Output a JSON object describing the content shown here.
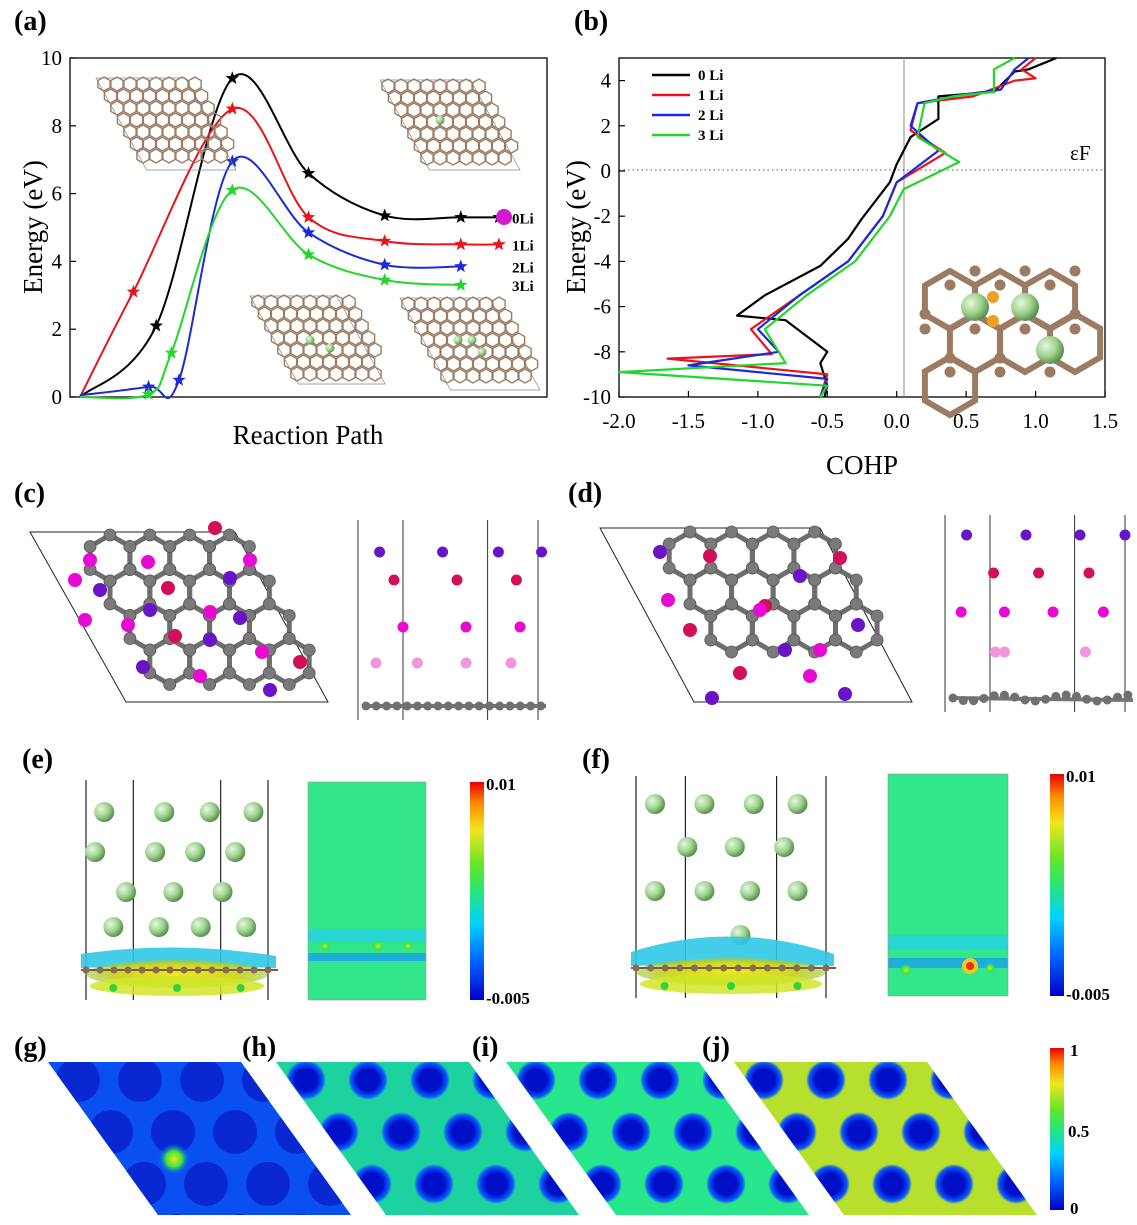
{
  "panel_labels": {
    "a": "(a)",
    "b": "(b)",
    "c": "(c)",
    "d": "(d)",
    "e": "(e)",
    "f": "(f)",
    "g": "(g)",
    "h": "(h)",
    "i": "(i)",
    "j": "(j)"
  },
  "colors": {
    "black": "#000000",
    "red": "#e8141c",
    "blue": "#1a2ad6",
    "green": "#22d62a",
    "carbon_brown": "#9b7b62",
    "lithium_green": "#9ed28e",
    "magenta": "#e60ad2",
    "crimson": "#d2105a",
    "purple": "#6a14c8"
  },
  "chart_data": [
    {
      "panel": "a",
      "type": "line",
      "xlabel": "Reaction Path",
      "ylabel": "Energy (eV)",
      "ylim": [
        0,
        10
      ],
      "yticks": [
        "0",
        "2",
        "4",
        "6",
        "8",
        "10"
      ],
      "x_ticks_shown": false,
      "marker": "star",
      "series": [
        {
          "name": "0Li",
          "color": "#000000",
          "x": [
            0,
            1.0,
            2.0,
            3.0,
            4.0,
            5.0,
            5.5
          ],
          "y": [
            0,
            2.1,
            9.4,
            6.6,
            5.35,
            5.3,
            5.3
          ]
        },
        {
          "name": "1Li",
          "color": "#e8141c",
          "x": [
            0,
            0.7,
            2.0,
            3.0,
            4.0,
            5.0,
            5.5
          ],
          "y": [
            0,
            3.1,
            8.5,
            5.3,
            4.6,
            4.5,
            4.5
          ]
        },
        {
          "name": "2Li",
          "color": "#1a2ad6",
          "x": [
            0,
            0.9,
            1.3,
            2.0,
            3.0,
            4.0,
            5.0
          ],
          "y": [
            0.05,
            0.3,
            0.5,
            6.95,
            4.85,
            3.9,
            3.85
          ]
        },
        {
          "name": "3Li",
          "color": "#22d62a",
          "x": [
            0,
            0.9,
            1.2,
            2.0,
            3.0,
            4.0,
            5.0
          ],
          "y": [
            0,
            0.08,
            1.3,
            6.1,
            4.2,
            3.45,
            3.3
          ]
        }
      ]
    },
    {
      "panel": "b",
      "type": "line",
      "xlabel": "COHP",
      "ylabel": "Energy (eV)",
      "xlim": [
        -2.0,
        1.5
      ],
      "ylim": [
        -10,
        5
      ],
      "xticks": [
        "-2.0",
        "-1.5",
        "-1.0",
        "-0.5",
        "0.0",
        "0.5",
        "1.0",
        "1.5"
      ],
      "yticks": [
        "-10",
        "-8",
        "-6",
        "-4",
        "-2",
        "0",
        "2",
        "4"
      ],
      "fermi_label": "εF",
      "legend_position": "top-left",
      "series": [
        {
          "name": "0 Li",
          "color": "#000000",
          "x": [
            -0.52,
            -0.5,
            -0.55,
            -0.5,
            -0.8,
            -1.15,
            -0.95,
            -0.55,
            -0.35,
            -0.25,
            -0.05,
            0.0,
            0.1,
            0.3,
            0.3,
            0.7,
            0.85,
            0.95,
            1.15
          ],
          "y": [
            -10,
            -9.5,
            -8.5,
            -8.0,
            -6.6,
            -6.4,
            -5.5,
            -4.2,
            -3.0,
            -2.1,
            -0.5,
            0.3,
            1.5,
            2.3,
            3.3,
            3.5,
            4.4,
            4.5,
            5.0
          ]
        },
        {
          "name": "1 Li",
          "color": "#e8141c",
          "x": [
            -0.55,
            -0.5,
            -1.65,
            -0.9,
            -1.05,
            -0.7,
            -0.35,
            -0.1,
            -0.0,
            0.35,
            0.1,
            0.15,
            0.55,
            0.85,
            1.0,
            0.9,
            1.0
          ],
          "y": [
            -10,
            -9.0,
            -8.3,
            -8.1,
            -7.0,
            -5.5,
            -4.0,
            -2.0,
            -0.5,
            0.8,
            1.8,
            3.0,
            3.3,
            4.0,
            4.1,
            4.5,
            5.0
          ]
        },
        {
          "name": "2 Li",
          "color": "#1a2ad6",
          "x": [
            -0.55,
            -0.5,
            -1.5,
            -0.85,
            -1.0,
            -0.7,
            -0.35,
            -0.1,
            -0.0,
            0.3,
            0.1,
            0.15,
            0.5,
            0.75,
            0.85,
            0.95
          ],
          "y": [
            -10,
            -9.2,
            -8.6,
            -8.0,
            -7.0,
            -5.5,
            -4.0,
            -2.0,
            -0.5,
            0.9,
            2.0,
            3.0,
            3.4,
            3.6,
            4.5,
            5.0
          ]
        },
        {
          "name": "3 Li",
          "color": "#22d62a",
          "x": [
            -0.55,
            -0.5,
            -2.0,
            -0.8,
            -0.95,
            -0.65,
            -0.3,
            -0.05,
            0.05,
            0.45,
            0.15,
            0.2,
            0.4,
            0.7,
            0.7,
            0.85
          ],
          "y": [
            -10,
            -9.5,
            -8.9,
            -8.5,
            -7.0,
            -5.5,
            -4.0,
            -2.0,
            -0.8,
            0.4,
            1.5,
            3.0,
            3.3,
            3.5,
            4.5,
            5.0
          ]
        }
      ]
    },
    {
      "panel": "e",
      "type": "heatmap",
      "colorbar_ticks": [
        "0.01",
        "-0.005"
      ]
    },
    {
      "panel": "f",
      "type": "heatmap",
      "colorbar_ticks": [
        "0.01",
        "-0.005"
      ]
    },
    {
      "panel": "g-j",
      "type": "heatmap",
      "colorbar_ticks": [
        "1",
        "0.5",
        "0"
      ]
    }
  ]
}
